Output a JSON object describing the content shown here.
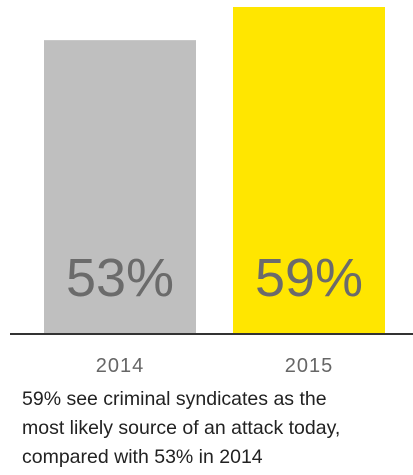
{
  "chart_data": {
    "type": "bar",
    "categories": [
      "2014",
      "2015"
    ],
    "values": [
      53,
      59
    ],
    "value_labels": [
      "53%",
      "59%"
    ],
    "ylim": [
      0,
      59
    ],
    "grid": false,
    "legend": "none",
    "colors": [
      "#bfbfbf",
      "#ffe600"
    ],
    "axis_color": "#333333",
    "value_label_color": "#6b6b6b",
    "tick_label_color": "#666666"
  },
  "caption": {
    "lines": [
      "59% see criminal syndicates as the",
      "most likely source of an attack today,",
      "compared with 53% in 2014"
    ]
  }
}
